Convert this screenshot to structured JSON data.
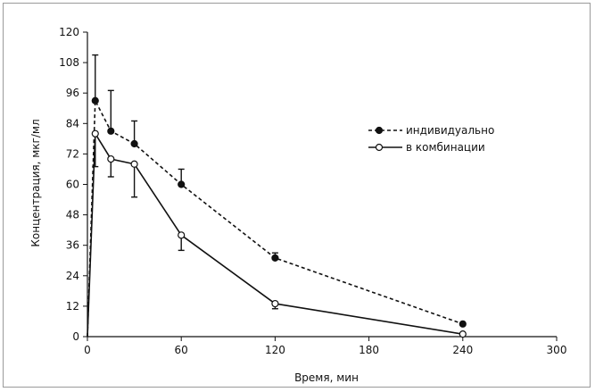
{
  "chart_data": {
    "type": "line",
    "xlabel": "Время, мин",
    "ylabel": "Концентрация, мкг/мл",
    "xlim": [
      0,
      300
    ],
    "ylim": [
      0,
      120
    ],
    "x_ticks": [
      0,
      60,
      120,
      180,
      240,
      300
    ],
    "y_ticks": [
      0,
      12,
      24,
      36,
      48,
      60,
      72,
      84,
      96,
      108,
      120
    ],
    "grid": false,
    "legend_position": "upper-right",
    "series": [
      {
        "name": "индивидуально",
        "line_style": "dashed",
        "marker": "filled-circle",
        "color": "#111111",
        "x": [
          0,
          5,
          15,
          30,
          60,
          120,
          240
        ],
        "y": [
          0,
          93,
          81,
          76,
          60,
          31,
          5
        ],
        "error_upper": [
          null,
          111,
          97,
          85,
          66,
          33,
          null
        ],
        "error_lower": [
          null,
          null,
          null,
          null,
          null,
          null,
          null
        ]
      },
      {
        "name": "в комбинации",
        "line_style": "solid",
        "marker": "open-circle",
        "color": "#111111",
        "x": [
          0,
          5,
          15,
          30,
          60,
          120,
          240
        ],
        "y": [
          0,
          80,
          70,
          68,
          40,
          13,
          1
        ],
        "error_upper": [
          null,
          null,
          null,
          null,
          null,
          null,
          null
        ],
        "error_lower": [
          null,
          67,
          63,
          55,
          34,
          11,
          null
        ]
      }
    ]
  }
}
